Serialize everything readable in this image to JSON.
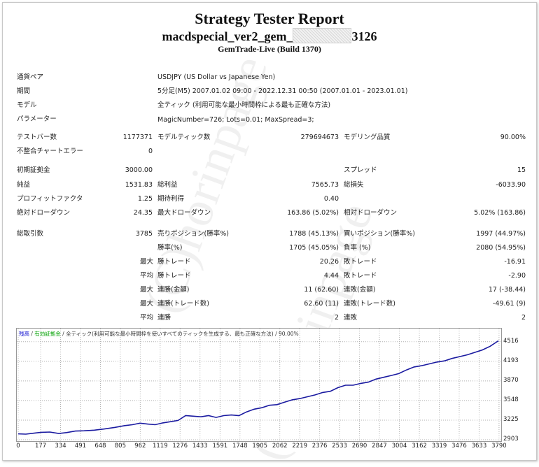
{
  "report": {
    "title": "Strategy Tester Report",
    "ea_prefix": "macdspecial_ver2_gem_",
    "ea_suffix": "3126",
    "build": "GemTrade-Live (Build 1370)"
  },
  "settings": [
    {
      "label": "通貨ペア",
      "value": "USDJPY (US Dollar vs Japanese Yen)"
    },
    {
      "label": "期間",
      "value": "5分足(M5) 2007.01.02 09:00 - 2022.12.31 00:50 (2007.01.01 - 2023.01.01)"
    },
    {
      "label": "モデル",
      "value": "全ティック (利用可能な最小時間枠による最も正確な方法)"
    },
    {
      "label": "パラメーター",
      "value": "MagicNumber=726; Lots=0.01; MaxSpread=3;"
    }
  ],
  "stats": {
    "bars_label": "テストバー数",
    "bars_value": "1177371",
    "ticks_label": "モデルティック数",
    "ticks_value": "279694673",
    "quality_label": "モデリング品質",
    "quality_value": "90.00%",
    "errors_label": "不整合チャートエラー",
    "errors_value": "0",
    "deposit_label": "初期証拠金",
    "deposit_value": "3000.00",
    "spread_label": "スプレッド",
    "spread_value": "15",
    "net_label": "純益",
    "net_value": "1531.83",
    "gross_profit_label": "総利益",
    "gross_profit_value": "7565.73",
    "gross_loss_label": "総損失",
    "gross_loss_value": "-6033.90",
    "pf_label": "プロフィットファクタ",
    "pf_value": "1.25",
    "expected_label": "期待利得",
    "expected_value": "0.40",
    "abs_dd_label": "絶対ドローダウン",
    "abs_dd_value": "24.35",
    "max_dd_label": "最大ドローダウン",
    "max_dd_value": "163.86 (5.02%)",
    "rel_dd_label": "相対ドローダウン",
    "rel_dd_value": "5.02% (163.86)",
    "total_trades_label": "総取引数",
    "total_trades_value": "3785",
    "short_label": "売りポジション(勝率%)",
    "short_value": "1788 (45.13%)",
    "long_label": "買いポジション(勝率%)",
    "long_value": "1997 (44.97%)",
    "winrate_label": "勝率(%)",
    "winrate_value": "1705 (45.05%)",
    "lossrate_label": "負率 (%)",
    "lossrate_value": "2080 (54.95%)",
    "max_word": "最大",
    "avg_word": "平均",
    "largest_win_label": "勝トレード",
    "largest_win_value": "20.26",
    "largest_loss_label": "敗トレード",
    "largest_loss_value": "-16.91",
    "avg_win_label": "勝トレード",
    "avg_win_value": "4.44",
    "avg_loss_label": "敗トレード",
    "avg_loss_value": "-2.90",
    "max_consec_win_label": "連勝(金額)",
    "max_consec_win_value": "11 (62.60)",
    "max_consec_loss_label": "連敗(金額)",
    "max_consec_loss_value": "17 (-38.44)",
    "max_consec_profit_label": "連勝(トレード数)",
    "max_consec_profit_value": "62.60 (11)",
    "max_consec_lossamt_label": "連敗(トレード数)",
    "max_consec_lossamt_value": "-49.61 (9)",
    "avg_consec_win_label": "連勝",
    "avg_consec_win_value": "2",
    "avg_consec_loss_label": "連敗",
    "avg_consec_loss_value": "2"
  },
  "watermark_text": "(C)horinpage",
  "chart_legend": {
    "balance": "残高",
    "equity": "有効証拠金",
    "rest": "全ティック(利用可能な最小時間枠を使いすべてのティックを生成する、最も正確な方法)",
    "quality": "90.00%",
    "balance_color": "#0000cc",
    "equity_color": "#00a000"
  },
  "chart_data": {
    "type": "line",
    "x_ticks": [
      0,
      177,
      334,
      491,
      648,
      805,
      962,
      1119,
      1276,
      1433,
      1591,
      1748,
      1905,
      2062,
      2219,
      2376,
      2533,
      2690,
      2847,
      3004,
      3162,
      3319,
      3476,
      3633,
      3790
    ],
    "y_ticks": [
      2903,
      3225,
      3548,
      3870,
      4193,
      4516
    ],
    "xlim": [
      0,
      3785
    ],
    "ylim": [
      2903,
      4570
    ],
    "series": [
      {
        "color": "#1a1aa0",
        "x": [
          0,
          60,
          120,
          180,
          250,
          320,
          380,
          450,
          520,
          600,
          680,
          760,
          840,
          900,
          960,
          1020,
          1080,
          1140,
          1200,
          1260,
          1320,
          1380,
          1440,
          1500,
          1560,
          1620,
          1680,
          1740,
          1800,
          1860,
          1920,
          1980,
          2040,
          2100,
          2160,
          2220,
          2280,
          2340,
          2400,
          2460,
          2520,
          2580,
          2640,
          2700,
          2760,
          2820,
          2880,
          2940,
          3000,
          3060,
          3120,
          3180,
          3240,
          3300,
          3360,
          3420,
          3480,
          3540,
          3600,
          3660,
          3720,
          3785
        ],
        "y": [
          3000,
          2995,
          3010,
          3025,
          3030,
          3005,
          3020,
          3045,
          3050,
          3060,
          3080,
          3105,
          3135,
          3150,
          3175,
          3160,
          3150,
          3180,
          3200,
          3220,
          3300,
          3290,
          3280,
          3300,
          3270,
          3300,
          3310,
          3300,
          3360,
          3405,
          3430,
          3470,
          3480,
          3520,
          3560,
          3580,
          3610,
          3640,
          3680,
          3700,
          3760,
          3800,
          3800,
          3830,
          3850,
          3900,
          3930,
          3960,
          3990,
          4050,
          4100,
          4120,
          4150,
          4180,
          4200,
          4240,
          4270,
          4300,
          4340,
          4380,
          4440,
          4530
        ]
      }
    ]
  }
}
